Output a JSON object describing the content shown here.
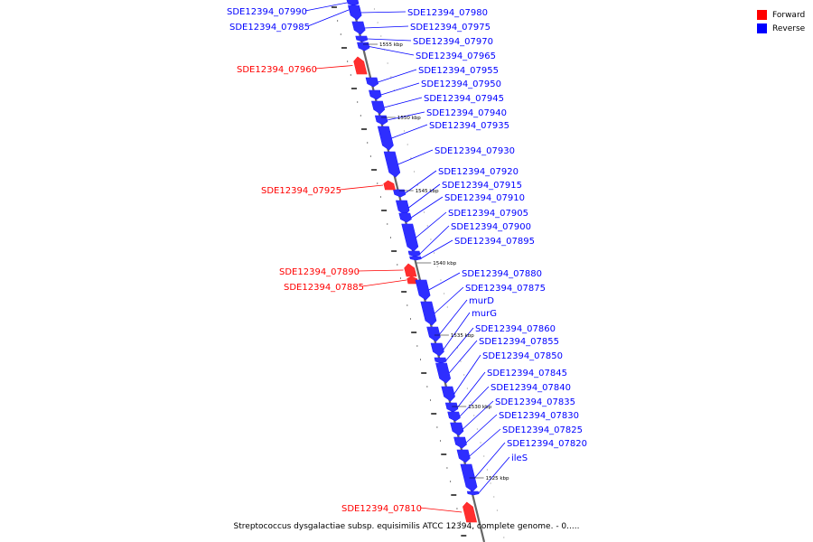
{
  "legend": {
    "forward": {
      "label": "Forward",
      "color": "#ff0000"
    },
    "reverse": {
      "label": "Reverse",
      "color": "#0000ff"
    }
  },
  "caption": "Streptococcus dysgalactiae subsp. equisimilis ATCC 12394, complete genome. - 0.....",
  "colors": {
    "forward": "#ff0000",
    "reverse": "#0000ff",
    "backbone": "#808080"
  },
  "scale": {
    "unit": "kbp",
    "ticks": [
      "1555 kbp",
      "1550 kbp",
      "1545 kbp",
      "1540 kbp",
      "1535 kbp",
      "1530 kbp",
      "1525 kbp"
    ]
  },
  "genes": [
    {
      "name": "SDE12394_07990",
      "strand": "reverse"
    },
    {
      "name": "SDE12394_07985",
      "strand": "reverse"
    },
    {
      "name": "SDE12394_07980",
      "strand": "reverse"
    },
    {
      "name": "SDE12394_07975",
      "strand": "reverse"
    },
    {
      "name": "SDE12394_07970",
      "strand": "reverse"
    },
    {
      "name": "SDE12394_07965",
      "strand": "reverse"
    },
    {
      "name": "SDE12394_07960",
      "strand": "forward"
    },
    {
      "name": "SDE12394_07955",
      "strand": "reverse"
    },
    {
      "name": "SDE12394_07950",
      "strand": "reverse"
    },
    {
      "name": "SDE12394_07945",
      "strand": "reverse"
    },
    {
      "name": "SDE12394_07940",
      "strand": "reverse"
    },
    {
      "name": "SDE12394_07935",
      "strand": "reverse"
    },
    {
      "name": "SDE12394_07930",
      "strand": "reverse"
    },
    {
      "name": "SDE12394_07920",
      "strand": "reverse"
    },
    {
      "name": "SDE12394_07925",
      "strand": "forward"
    },
    {
      "name": "SDE12394_07915",
      "strand": "reverse"
    },
    {
      "name": "SDE12394_07910",
      "strand": "reverse"
    },
    {
      "name": "SDE12394_07905",
      "strand": "reverse"
    },
    {
      "name": "SDE12394_07900",
      "strand": "reverse"
    },
    {
      "name": "SDE12394_07895",
      "strand": "reverse"
    },
    {
      "name": "SDE12394_07890",
      "strand": "forward"
    },
    {
      "name": "SDE12394_07885",
      "strand": "forward"
    },
    {
      "name": "SDE12394_07880",
      "strand": "reverse"
    },
    {
      "name": "SDE12394_07875",
      "strand": "reverse"
    },
    {
      "name": "murD",
      "strand": "reverse"
    },
    {
      "name": "murG",
      "strand": "reverse"
    },
    {
      "name": "SDE12394_07860",
      "strand": "reverse"
    },
    {
      "name": "SDE12394_07855",
      "strand": "reverse"
    },
    {
      "name": "SDE12394_07850",
      "strand": "reverse"
    },
    {
      "name": "SDE12394_07845",
      "strand": "reverse"
    },
    {
      "name": "SDE12394_07840",
      "strand": "reverse"
    },
    {
      "name": "SDE12394_07835",
      "strand": "reverse"
    },
    {
      "name": "SDE12394_07830",
      "strand": "reverse"
    },
    {
      "name": "SDE12394_07825",
      "strand": "reverse"
    },
    {
      "name": "SDE12394_07820",
      "strand": "reverse"
    },
    {
      "name": "ileS",
      "strand": "reverse"
    },
    {
      "name": "SDE12394_07810",
      "strand": "forward"
    }
  ]
}
